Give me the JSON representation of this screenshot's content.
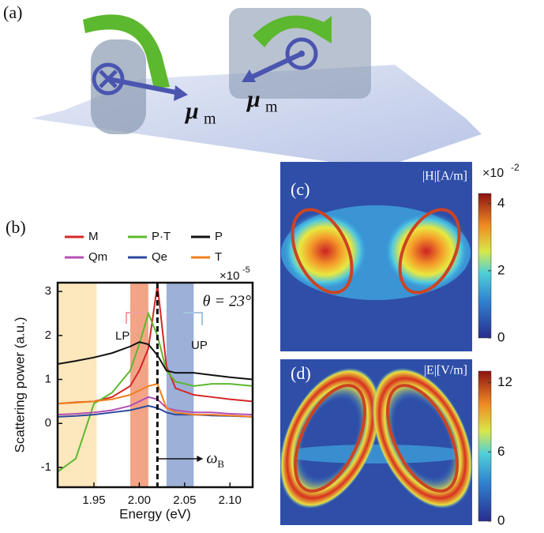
{
  "panel_a": {
    "label": "(a)",
    "moments": [
      {
        "symbol": "μ",
        "sub": "m"
      },
      {
        "symbol": "μ",
        "sub": "m"
      }
    ]
  },
  "chart_data": {
    "type": "line",
    "label": "(b)",
    "xlabel": "Energy (eV)",
    "ylabel": "Scattering power  (a.u.)",
    "y_multiplier": {
      "base": "×10",
      "exponent": "-5"
    },
    "x": [
      1.91,
      1.93,
      1.95,
      1.97,
      1.99,
      2.0,
      2.01,
      2.02,
      2.03,
      2.04,
      2.06,
      2.08,
      2.1,
      2.125
    ],
    "series": [
      {
        "name": "M",
        "color": "#d62728",
        "values": [
          0.45,
          0.48,
          0.5,
          0.6,
          0.85,
          1.2,
          1.7,
          3.15,
          1.3,
          0.8,
          0.65,
          0.6,
          0.55,
          0.5
        ]
      },
      {
        "name": "P·T",
        "color": "#5cb82e",
        "values": [
          -1.1,
          -0.8,
          0.45,
          0.7,
          1.2,
          1.8,
          2.5,
          2.0,
          1.2,
          0.95,
          0.85,
          0.9,
          0.9,
          0.85
        ]
      },
      {
        "name": "P",
        "color": "#111111",
        "values": [
          1.35,
          1.42,
          1.5,
          1.6,
          1.75,
          1.85,
          1.8,
          1.55,
          1.2,
          1.15,
          1.15,
          1.1,
          1.05,
          1.0
        ]
      },
      {
        "name": "Qm",
        "color": "#b44fb4",
        "values": [
          0.2,
          0.22,
          0.25,
          0.3,
          0.4,
          0.5,
          0.6,
          0.55,
          0.35,
          0.3,
          0.25,
          0.25,
          0.22,
          0.2
        ]
      },
      {
        "name": "Qe",
        "color": "#2b4a9e",
        "values": [
          0.15,
          0.17,
          0.2,
          0.25,
          0.3,
          0.35,
          0.4,
          0.35,
          0.25,
          0.2,
          0.2,
          0.18,
          0.17,
          0.15
        ]
      },
      {
        "name": "T",
        "color": "#f07f1e",
        "values": [
          0.45,
          0.47,
          0.5,
          0.55,
          0.65,
          0.75,
          0.85,
          0.9,
          0.35,
          0.25,
          0.2,
          0.2,
          0.18,
          0.15
        ]
      }
    ],
    "xlim": [
      1.91,
      2.125
    ],
    "ylim": [
      -1.45,
      3.2
    ],
    "xticks": [
      1.95,
      {
        "value": 2,
        "label": "2.00"
      },
      2.05,
      {
        "value": 2.1,
        "label": "2.10"
      }
    ],
    "yticks": [
      -1,
      0,
      1,
      2,
      3
    ],
    "shaded_regions": [
      {
        "from": 1.91,
        "to": 1.953,
        "color": "#fde7bd"
      },
      {
        "from": 1.99,
        "to": 2.01,
        "color": "#f3a486"
      },
      {
        "from": 2.03,
        "to": 2.06,
        "color": "#9cb0d8"
      }
    ],
    "vline": 2.02,
    "annotations": {
      "angle": "θ = 23°",
      "lp": "LP",
      "up": "UP",
      "omega": {
        "symbol": "ω",
        "sub": "B"
      }
    }
  },
  "panel_c": {
    "label": "(c)",
    "quantity": "|H|[A/m]",
    "multiplier": {
      "base": "×10",
      "exponent": "-2"
    },
    "colorbar": {
      "lim": [
        0,
        4.3
      ],
      "ticks": [
        0,
        2,
        4
      ]
    }
  },
  "panel_d": {
    "label": "(d)",
    "quantity": "|E|[V/m]",
    "colorbar": {
      "lim": [
        0,
        13
      ],
      "ticks": [
        0,
        6,
        12
      ]
    }
  }
}
